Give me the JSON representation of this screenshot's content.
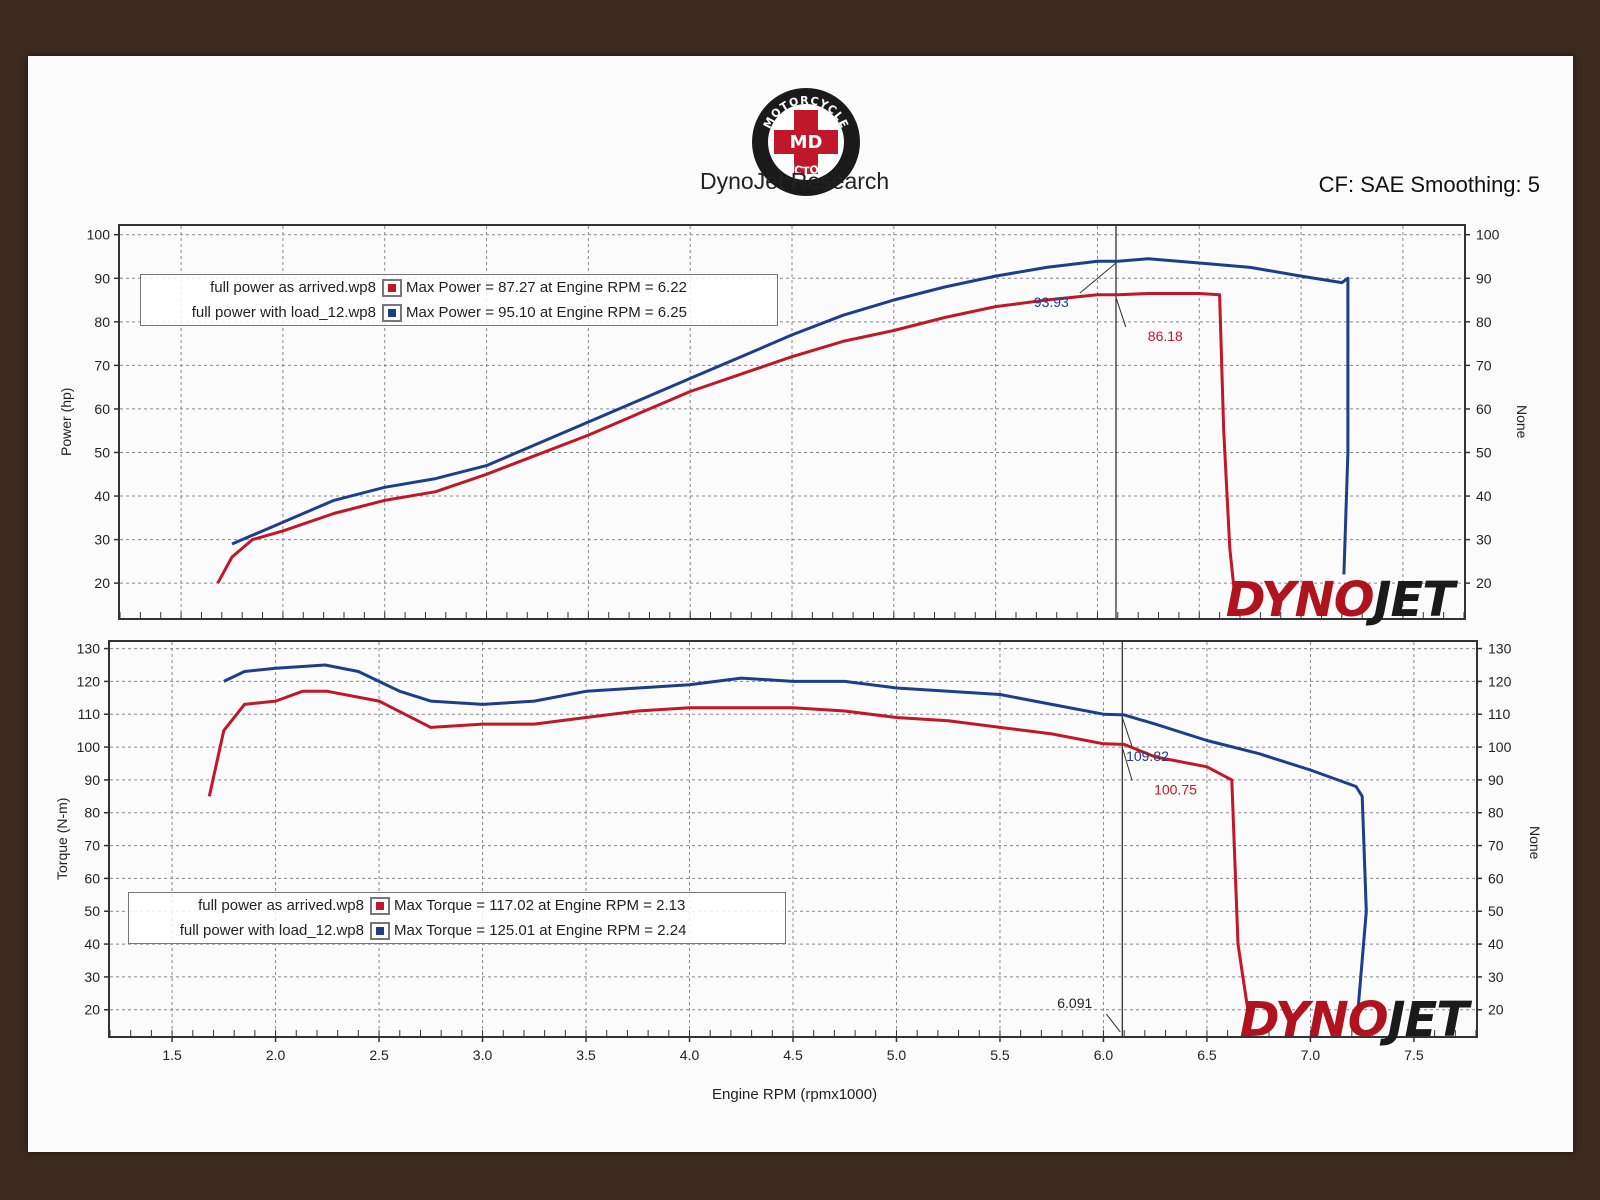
{
  "header": {
    "title": "DynoJet Research",
    "logo_text": "MOTORCYCLE MD DOCTORS",
    "cf": "CF: SAE Smoothing: 5"
  },
  "brand": "DYNOJET",
  "colors": {
    "red": "#c0172b",
    "blue": "#1e3e8c"
  },
  "chart_data": [
    {
      "type": "line",
      "ylabel": "Power (hp)",
      "y2label": "None",
      "ylim": [
        12,
        102
      ],
      "xlim": [
        1.2,
        7.8
      ],
      "yticks": [
        20,
        30,
        40,
        50,
        60,
        70,
        80,
        90,
        100
      ],
      "grid": true,
      "legend": [
        {
          "file": "full power as arrived.wp8",
          "text": "Max Power = 87.27 at Engine RPM = 6.22",
          "color": "red"
        },
        {
          "file": "full power with load_12.wp8",
          "text": "Max Power = 95.10 at Engine RPM = 6.25",
          "color": "blue"
        }
      ],
      "cursor_x": 6.091,
      "annotations": [
        {
          "text": "93.93",
          "x": 6.09,
          "y": 93.93,
          "color": "blue"
        },
        {
          "text": "86.18",
          "x": 6.09,
          "y": 86.18,
          "color": "red"
        }
      ],
      "series": [
        {
          "color": "red",
          "x": [
            1.68,
            1.75,
            1.85,
            2.0,
            2.25,
            2.5,
            2.75,
            3.0,
            3.25,
            3.5,
            3.75,
            4.0,
            4.25,
            4.5,
            4.75,
            5.0,
            5.25,
            5.5,
            5.75,
            6.0,
            6.1,
            6.25,
            6.5,
            6.6,
            6.62,
            6.65,
            6.67
          ],
          "y": [
            20,
            26,
            30,
            32,
            36,
            39,
            41,
            45,
            49.5,
            54,
            59,
            64,
            68,
            72,
            75.5,
            78,
            81,
            83.5,
            85,
            86.2,
            86.2,
            86.5,
            86.5,
            86.2,
            55,
            28,
            19
          ]
        },
        {
          "color": "blue",
          "x": [
            1.75,
            2.0,
            2.25,
            2.5,
            2.75,
            3.0,
            3.25,
            3.5,
            3.75,
            4.0,
            4.25,
            4.5,
            4.75,
            5.0,
            5.25,
            5.5,
            5.75,
            6.0,
            6.1,
            6.25,
            6.5,
            6.75,
            7.0,
            7.2,
            7.23,
            7.23,
            7.21
          ],
          "y": [
            29,
            34,
            39,
            42,
            44,
            47,
            52,
            57,
            62,
            67,
            72,
            77,
            81.5,
            85,
            88,
            90.5,
            92.5,
            93.9,
            93.9,
            94.5,
            93.5,
            92.5,
            90.5,
            89,
            90,
            50,
            22
          ]
        }
      ]
    },
    {
      "type": "line",
      "xlabel": "Engine RPM (rpmx1000)",
      "ylabel": "Torque (N-m)",
      "y2label": "None",
      "ylim": [
        12,
        132
      ],
      "xlim": [
        1.2,
        7.8
      ],
      "yticks": [
        20,
        30,
        40,
        50,
        60,
        70,
        80,
        90,
        100,
        110,
        120,
        130
      ],
      "xticks": [
        1.5,
        2.0,
        2.5,
        3.0,
        3.5,
        4.0,
        4.5,
        5.0,
        5.5,
        6.0,
        6.5,
        7.0,
        7.5
      ],
      "xtick_labels": [
        "1.5",
        "2.0",
        "2.5",
        "3.0",
        "3.5",
        "4.0",
        "4.5",
        "5.0",
        "5.5",
        "6.0",
        "6.5",
        "7.0",
        "7.5"
      ],
      "grid": true,
      "legend": [
        {
          "file": "full power as arrived.wp8",
          "text": "Max Torque = 117.02 at Engine RPM = 2.13",
          "color": "red"
        },
        {
          "file": "full power with load_12.wp8",
          "text": "Max Torque = 125.01 at Engine RPM = 2.24",
          "color": "blue"
        }
      ],
      "cursor_x": 6.091,
      "cursor_label": "6.091",
      "annotations": [
        {
          "text": "109.82",
          "x": 6.09,
          "y": 109.82,
          "color": "blue"
        },
        {
          "text": "100.75",
          "x": 6.09,
          "y": 100.75,
          "color": "red"
        }
      ],
      "series": [
        {
          "color": "red",
          "x": [
            1.68,
            1.75,
            1.85,
            2.0,
            2.13,
            2.25,
            2.5,
            2.75,
            3.0,
            3.25,
            3.5,
            3.75,
            4.0,
            4.25,
            4.5,
            4.75,
            5.0,
            5.25,
            5.5,
            5.75,
            6.0,
            6.1,
            6.25,
            6.5,
            6.62,
            6.65,
            6.7
          ],
          "y": [
            85,
            105,
            113,
            114,
            117,
            117,
            114,
            106,
            107,
            107,
            109,
            111,
            112,
            112,
            112,
            111,
            109,
            108,
            106,
            104,
            101,
            100.8,
            97,
            94,
            90,
            40,
            19
          ]
        },
        {
          "color": "blue",
          "x": [
            1.75,
            1.85,
            2.0,
            2.24,
            2.4,
            2.6,
            2.75,
            3.0,
            3.25,
            3.5,
            3.75,
            4.0,
            4.25,
            4.5,
            4.75,
            5.0,
            5.25,
            5.5,
            5.75,
            6.0,
            6.1,
            6.25,
            6.5,
            6.75,
            7.0,
            7.22,
            7.25,
            7.27,
            7.23
          ],
          "y": [
            120,
            123,
            124,
            125,
            123,
            117,
            114,
            113,
            114,
            117,
            118,
            119,
            121,
            120,
            120,
            118,
            117,
            116,
            113,
            110,
            109.8,
            107,
            102,
            98,
            93,
            88,
            85,
            50,
            20
          ]
        }
      ]
    }
  ]
}
